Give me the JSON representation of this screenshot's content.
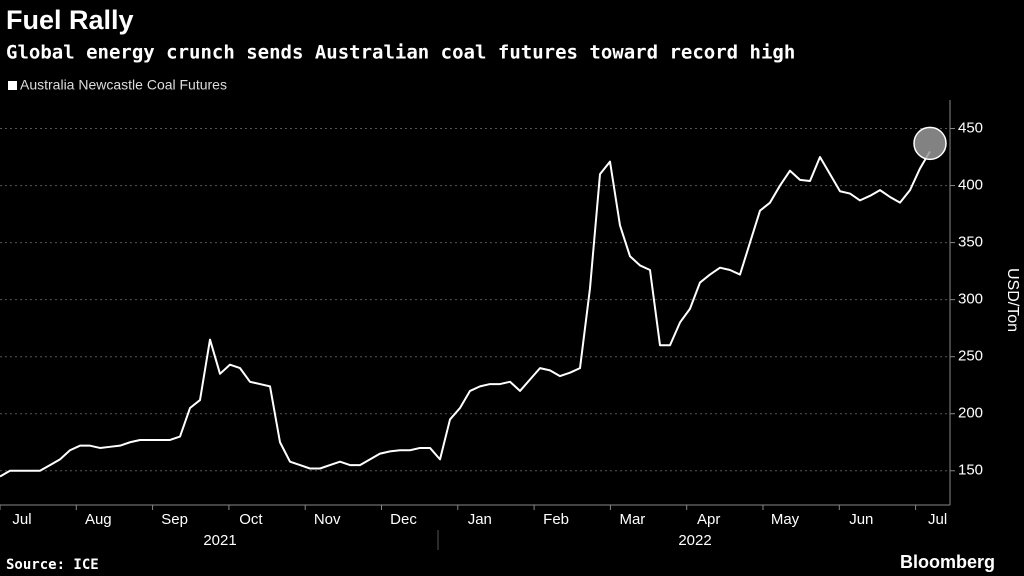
{
  "chart_data": {
    "type": "line",
    "title": "Fuel Rally",
    "subtitle": "Global energy crunch sends Australian coal futures toward record high",
    "y_label": "USD/Ton",
    "source": "Source: ICE",
    "brand": "Bloomberg",
    "month_labels": [
      "Jul",
      "Aug",
      "Sep",
      "Oct",
      "Nov",
      "Dec",
      "Jan",
      "Feb",
      "Mar",
      "Apr",
      "May",
      "Jun",
      "Jul"
    ],
    "year_labels": [
      "2021",
      "2022"
    ],
    "ylim": [
      120,
      475
    ],
    "yticks": [
      150,
      200,
      250,
      300,
      350,
      400,
      450
    ],
    "grid": true,
    "series": [
      {
        "name": "Australia Newcastle Coal Futures",
        "color": "#ffffff",
        "values": [
          145,
          150,
          150,
          150,
          150,
          155,
          160,
          168,
          172,
          172,
          170,
          171,
          172,
          175,
          177,
          177,
          177,
          177,
          180,
          205,
          212,
          265,
          235,
          243,
          240,
          228,
          226,
          224,
          175,
          158,
          155,
          152,
          152,
          155,
          158,
          155,
          155,
          160,
          165,
          167,
          168,
          168,
          170,
          170,
          160,
          195,
          205,
          220,
          224,
          226,
          226,
          228,
          220,
          230,
          240,
          238,
          233,
          236,
          240,
          310,
          410,
          421,
          365,
          338,
          330,
          326,
          260,
          260,
          280,
          292,
          315,
          322,
          328,
          326,
          322,
          350,
          378,
          385,
          400,
          413,
          405,
          404,
          425,
          410,
          395,
          393,
          387,
          391,
          396,
          390,
          385,
          396,
          415,
          430
        ]
      }
    ]
  }
}
